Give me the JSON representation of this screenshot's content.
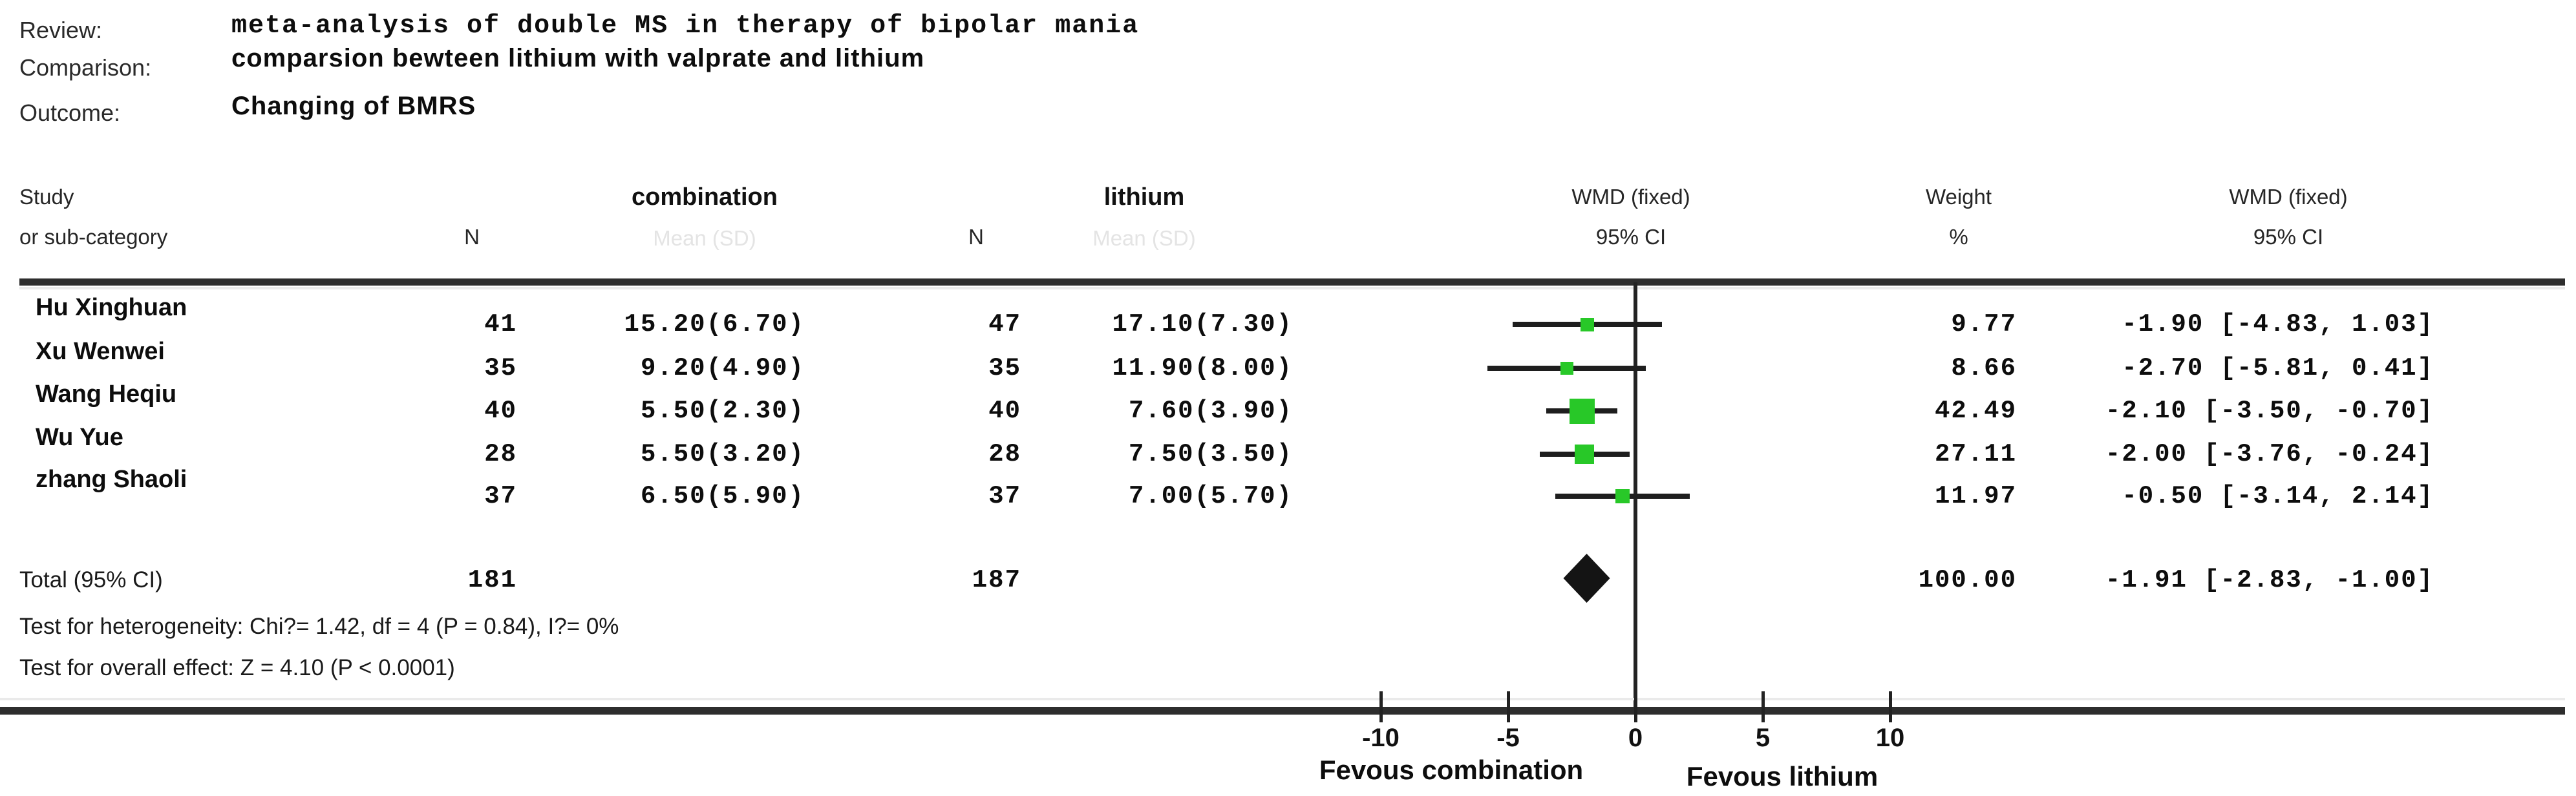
{
  "header": {
    "review_label": "Review:",
    "review_value": "meta-analysis of double MS in therapy of bipolar mania",
    "comparison_label": "Comparison:",
    "comparison_value": "comparsion bewteen lithium with valprate and lithium",
    "outcome_label": "Outcome:",
    "outcome_value": "Changing of BMRS"
  },
  "columns": {
    "study_line1": "Study",
    "study_line2": "or sub-category",
    "n_label": "N",
    "group1_label": "combination",
    "group2_label": "lithium",
    "group_sub_label": "Mean (SD)",
    "wmd_plot_line1": "WMD (fixed)",
    "wmd_plot_line2": "95% CI",
    "weight_line1": "Weight",
    "weight_line2": "%",
    "wmd_text_line1": "WMD (fixed)",
    "wmd_text_line2": "95% CI"
  },
  "chart_data": {
    "type": "forest",
    "effect_measure": "WMD (fixed)",
    "marker_color": "#28c828",
    "diamond_color": "#141414",
    "studies": [
      {
        "name": "Hu Xinghuan",
        "n_combination": "41",
        "mean_sd_combination": "15.20(6.70)",
        "n_lithium": "47",
        "mean_sd_lithium": "17.10(7.30)",
        "weight_pct": "9.77",
        "wmd": -1.9,
        "ci_low": -4.83,
        "ci_high": 1.03,
        "ci_text": "-1.90 [-4.83, 1.03]"
      },
      {
        "name": "Xu Wenwei",
        "n_combination": "35",
        "mean_sd_combination": "9.20(4.90)",
        "n_lithium": "35",
        "mean_sd_lithium": "11.90(8.00)",
        "weight_pct": "8.66",
        "wmd": -2.7,
        "ci_low": -5.81,
        "ci_high": 0.41,
        "ci_text": "-2.70 [-5.81, 0.41]"
      },
      {
        "name": "Wang Heqiu",
        "n_combination": "40",
        "mean_sd_combination": "5.50(2.30)",
        "n_lithium": "40",
        "mean_sd_lithium": "7.60(3.90)",
        "weight_pct": "42.49",
        "wmd": -2.1,
        "ci_low": -3.5,
        "ci_high": -0.7,
        "ci_text": "-2.10 [-3.50, -0.70]"
      },
      {
        "name": "Wu Yue",
        "n_combination": "28",
        "mean_sd_combination": "5.50(3.20)",
        "n_lithium": "28",
        "mean_sd_lithium": "7.50(3.50)",
        "weight_pct": "27.11",
        "wmd": -2.0,
        "ci_low": -3.76,
        "ci_high": -0.24,
        "ci_text": "-2.00 [-3.76, -0.24]"
      },
      {
        "name": "zhang Shaoli",
        "n_combination": "37",
        "mean_sd_combination": "6.50(5.90)",
        "n_lithium": "37",
        "mean_sd_lithium": "7.00(5.70)",
        "weight_pct": "11.97",
        "wmd": -0.5,
        "ci_low": -3.14,
        "ci_high": 2.14,
        "ci_text": "-0.50 [-3.14, 2.14]"
      }
    ],
    "total": {
      "label": "Total (95% CI)",
      "n_combination": "181",
      "n_lithium": "187",
      "weight_pct": "100.00",
      "wmd": -1.91,
      "ci_low": -2.83,
      "ci_high": -1.0,
      "ci_text": "-1.91 [-2.83, -1.00]"
    },
    "heterogeneity_text": "Test for heterogeneity: Chi?= 1.42, df = 4 (P = 0.84), I?= 0%",
    "overall_effect_text": "Test for overall effect: Z = 4.10 (P < 0.0001)",
    "x_axis": {
      "ticks": [
        -10,
        -5,
        0,
        5,
        10
      ],
      "left_caption": "Fevous combination",
      "right_caption": "Fevous lithium"
    }
  }
}
